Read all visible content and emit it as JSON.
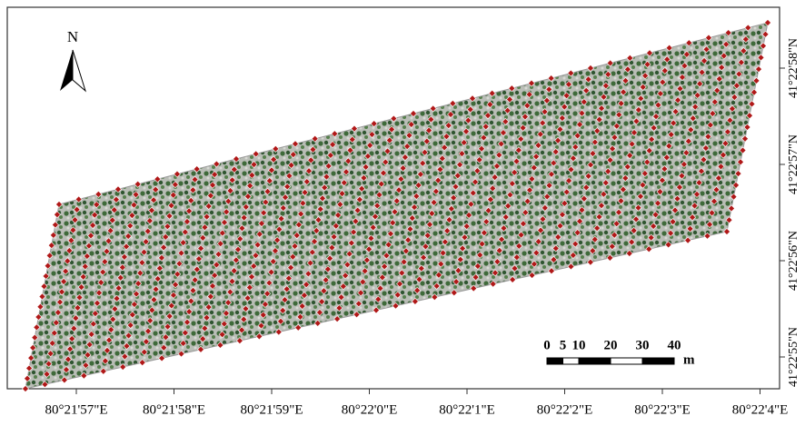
{
  "north": "N",
  "x_labels": [
    "80°21'57\"E",
    "80°21'58\"E",
    "80°21'59\"E",
    "80°22'0\"E",
    "80°22'1\"E",
    "80°22'2\"E",
    "80°22'3\"E",
    "80°22'4\"E"
  ],
  "y_labels": [
    "41°22'58\"N",
    "41°22'57\"N",
    "41°22'56\"N",
    "41°22'55\"N"
  ],
  "scale": {
    "ticks": [
      0,
      5,
      10,
      20,
      30,
      40
    ],
    "unit": "m"
  }
}
